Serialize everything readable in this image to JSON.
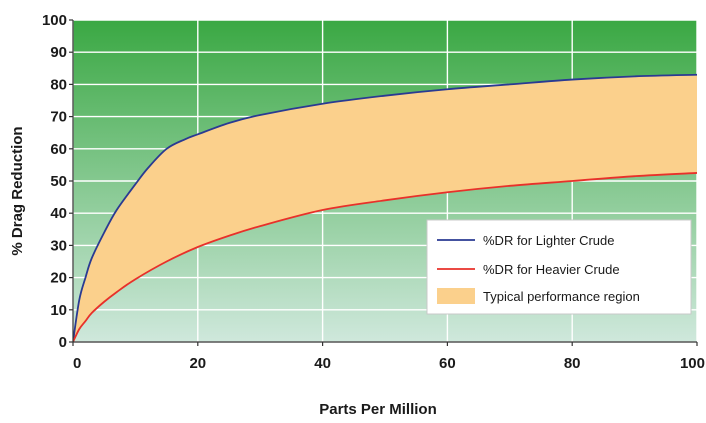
{
  "chart_data": {
    "type": "line",
    "title": "",
    "xlabel": "Parts Per Million",
    "ylabel": "% Drag Reduction",
    "xlim": [
      0,
      100
    ],
    "ylim": [
      0,
      100
    ],
    "x_ticks": [
      "0",
      "20",
      "40",
      "60",
      "80",
      "100"
    ],
    "y_ticks": [
      "0",
      "10",
      "20",
      "30",
      "40",
      "50",
      "60",
      "70",
      "80",
      "90",
      "100"
    ],
    "grid": true,
    "legend_position": "lower-right",
    "background_gradient": [
      "#3aa843",
      "#cfe8dc"
    ],
    "series": [
      {
        "name": "%DR for Lighter Crude",
        "color": "#2a3a92",
        "x": [
          0,
          1,
          2,
          3,
          5,
          7,
          10,
          12,
          15,
          18,
          20,
          25,
          30,
          40,
          50,
          60,
          70,
          80,
          90,
          100
        ],
        "y": [
          0,
          13,
          20,
          26,
          34,
          41,
          49,
          54,
          60,
          63,
          64.5,
          68,
          70.5,
          74,
          76.5,
          78.5,
          80,
          81.5,
          82.5,
          83
        ]
      },
      {
        "name": "%DR for Heavier Crude",
        "color": "#e8302a",
        "x": [
          0,
          1,
          2,
          3,
          5,
          7,
          10,
          15,
          20,
          25,
          30,
          40,
          50,
          60,
          70,
          80,
          90,
          100
        ],
        "y": [
          0,
          4,
          6.5,
          9,
          12.5,
          15.5,
          19.5,
          25,
          29.5,
          33,
          36,
          41,
          44,
          46.5,
          48.5,
          50,
          51.5,
          52.5
        ]
      }
    ],
    "region": {
      "name": "Typical performance region",
      "color": "#fbd08c"
    }
  }
}
